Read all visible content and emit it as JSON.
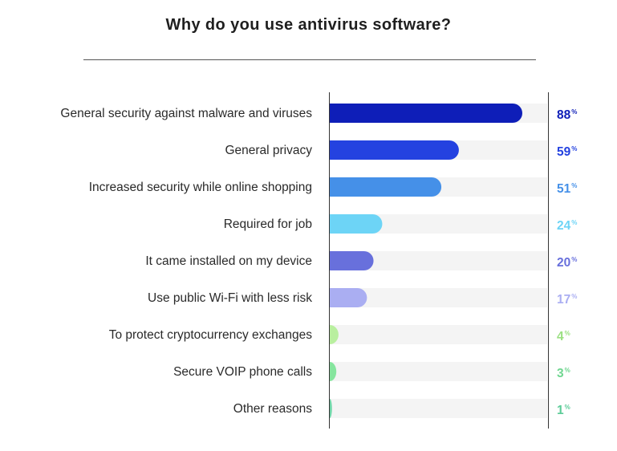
{
  "chart_data": {
    "type": "bar",
    "orientation": "horizontal",
    "title": "Why do you use antivirus software?",
    "xlabel": "",
    "ylabel": "",
    "xlim": [
      0,
      100
    ],
    "grid": false,
    "value_suffix": "%",
    "categories": [
      "General security against malware and viruses",
      "General privacy",
      "Increased security while online shopping",
      "Required for job",
      "It came installed on my device",
      "Use public Wi-Fi with less risk",
      "To protect cryptocurrency exchanges",
      "Secure VOIP phone calls",
      "Other reasons"
    ],
    "values": [
      88,
      59,
      51,
      24,
      20,
      17,
      4,
      3,
      1
    ],
    "colors": [
      "#0e1eb8",
      "#2442e0",
      "#4590e8",
      "#6dd4f6",
      "#6870dc",
      "#aaaef2",
      "#b9ef9f",
      "#86e59e",
      "#6fd6a8"
    ],
    "label_colors": [
      "#0e1eb8",
      "#2442e0",
      "#4590e8",
      "#6dd4f6",
      "#6870dc",
      "#aaaef2",
      "#9be082",
      "#6fd690",
      "#5ccc98"
    ],
    "track_color": "#f4f4f4"
  }
}
